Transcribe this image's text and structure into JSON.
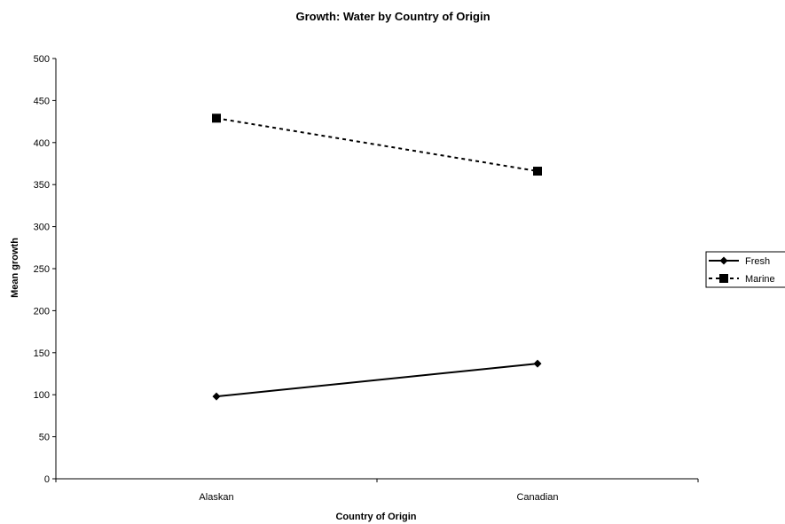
{
  "chart_data": {
    "type": "line",
    "title": "Growth: Water by Country of Origin",
    "xlabel": "Country of Origin",
    "ylabel": "Mean growth",
    "categories": [
      "Alaskan",
      "Canadian"
    ],
    "ylim": [
      0,
      500
    ],
    "yticks": [
      "0",
      "50",
      "100",
      "150",
      "200",
      "250",
      "300",
      "350",
      "400",
      "450",
      "500"
    ],
    "grid": false,
    "legend_position": "right",
    "series": [
      {
        "name": "Fresh",
        "values": [
          98,
          137
        ],
        "line_style": "solid",
        "marker": "diamond",
        "color": "#000000"
      },
      {
        "name": "Marine",
        "values": [
          429,
          366
        ],
        "line_style": "dashed",
        "marker": "square",
        "color": "#000000"
      }
    ]
  }
}
